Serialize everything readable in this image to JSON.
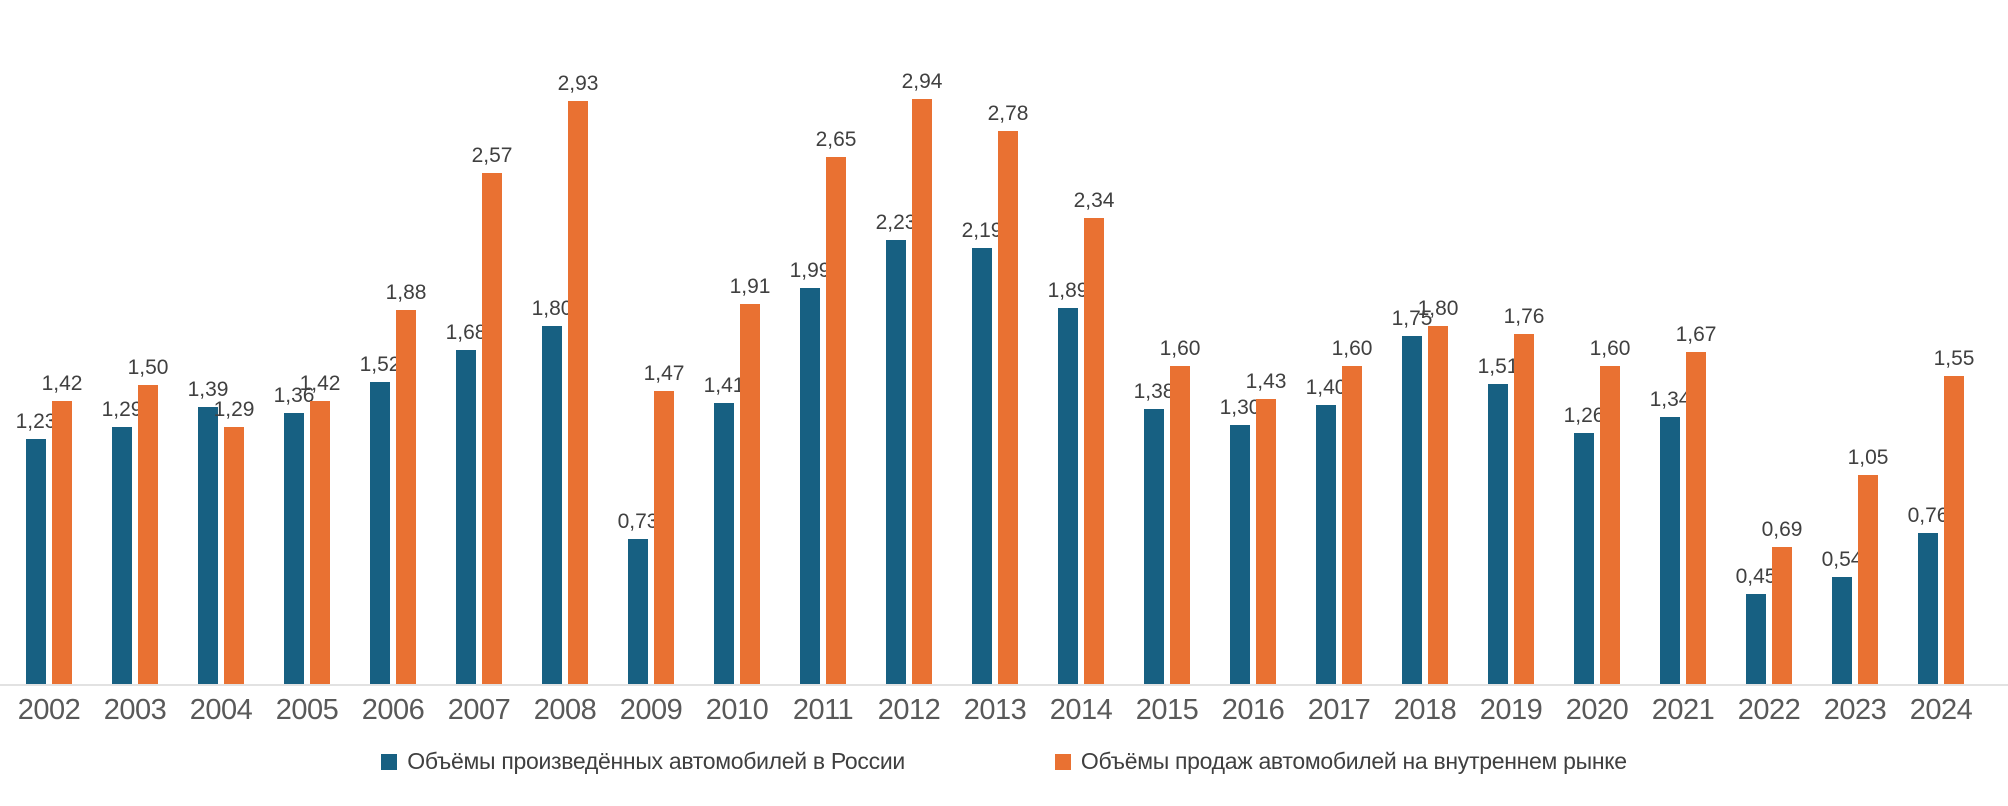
{
  "chart_data": {
    "type": "bar",
    "title": "",
    "xlabel": "",
    "ylabel": "",
    "ylim": [
      0,
      3.2
    ],
    "grid": false,
    "legend_position": "bottom",
    "decimal_separator": ",",
    "axis_line_color": "#e2e2e2",
    "value_label_color": "#404040",
    "tick_label_color": "#595959",
    "categories": [
      "2002",
      "2003",
      "2004",
      "2005",
      "2006",
      "2007",
      "2008",
      "2009",
      "2010",
      "2011",
      "2012",
      "2013",
      "2014",
      "2015",
      "2016",
      "2017",
      "2018",
      "2019",
      "2020",
      "2021",
      "2022",
      "2023",
      "2024"
    ],
    "series": [
      {
        "name": "Объёмы произведённых автомобилей в России",
        "color": "#176082",
        "values": [
          1.23,
          1.29,
          1.39,
          1.36,
          1.52,
          1.68,
          1.8,
          0.73,
          1.41,
          1.99,
          2.23,
          2.19,
          1.89,
          1.38,
          1.3,
          1.4,
          1.75,
          1.51,
          1.26,
          1.34,
          0.45,
          0.54,
          0.76
        ],
        "labels": [
          "1,23",
          "1,29",
          "1,39",
          "1,36",
          "1,52",
          "1,68",
          "1,80",
          "0,73",
          "1,41",
          "1,99",
          "2,23",
          "2,19",
          "1,89",
          "1,38",
          "1,30",
          "1,40",
          "1,75",
          "1,51",
          "1,26",
          "1,34",
          "0,45",
          "0,54",
          "0,76"
        ]
      },
      {
        "name": "Объёмы продаж автомобилей на внутреннем рынке",
        "color": "#E97132",
        "values": [
          1.42,
          1.5,
          1.29,
          1.42,
          1.88,
          2.57,
          2.93,
          1.47,
          1.91,
          2.65,
          2.94,
          2.78,
          2.34,
          1.6,
          1.43,
          1.6,
          1.8,
          1.76,
          1.6,
          1.67,
          0.69,
          1.05,
          1.55
        ],
        "labels": [
          "1,42",
          "1,50",
          "1,29",
          "1,42",
          "1,88",
          "2,57",
          "2,93",
          "1,47",
          "1,91",
          "2,65",
          "2,94",
          "2,78",
          "2,34",
          "1,60",
          "1,43",
          "1,60",
          "1,80",
          "1,76",
          "1,60",
          "1,67",
          "0,69",
          "1,05",
          "1,55"
        ]
      }
    ]
  }
}
